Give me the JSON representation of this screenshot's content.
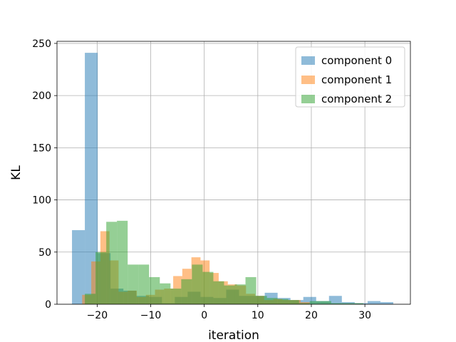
{
  "chart_data": {
    "type": "bar",
    "subtype": "overlapping-histogram",
    "title": "",
    "xlabel": "iteration",
    "ylabel": "KL",
    "xlim": [
      -27.5,
      38.5
    ],
    "ylim": [
      0,
      252
    ],
    "xticks": [
      -20,
      -10,
      0,
      10,
      20,
      30
    ],
    "xtick_labels": [
      "−20",
      "−10",
      "0",
      "10",
      "20",
      "30"
    ],
    "yticks": [
      0,
      50,
      100,
      150,
      200,
      250
    ],
    "ytick_labels": [
      "0",
      "50",
      "100",
      "150",
      "200",
      "250"
    ],
    "grid": true,
    "legend_position": "top-right",
    "series": [
      {
        "name": "component 0",
        "color": "#1f77b4",
        "alpha": 0.5,
        "bins": [
          {
            "x0": -24.7,
            "x1": -22.3,
            "value": 71
          },
          {
            "x0": -22.3,
            "x1": -19.9,
            "value": 241
          },
          {
            "x0": -19.9,
            "x1": -17.5,
            "value": 49
          },
          {
            "x0": -17.5,
            "x1": -15.1,
            "value": 15
          },
          {
            "x0": -15.1,
            "x1": -12.7,
            "value": 13
          },
          {
            "x0": -12.7,
            "x1": -10.3,
            "value": 8
          },
          {
            "x0": -10.3,
            "x1": -7.9,
            "value": 7
          },
          {
            "x0": -7.9,
            "x1": -5.5,
            "value": 1
          },
          {
            "x0": -5.5,
            "x1": -3.1,
            "value": 7
          },
          {
            "x0": -3.1,
            "x1": -0.7,
            "value": 12
          },
          {
            "x0": -0.7,
            "x1": 1.7,
            "value": 7
          },
          {
            "x0": 1.7,
            "x1": 4.1,
            "value": 6
          },
          {
            "x0": 4.1,
            "x1": 6.5,
            "value": 14
          },
          {
            "x0": 6.5,
            "x1": 8.9,
            "value": 8
          },
          {
            "x0": 8.9,
            "x1": 11.3,
            "value": 8
          },
          {
            "x0": 11.3,
            "x1": 13.7,
            "value": 11
          },
          {
            "x0": 13.7,
            "x1": 16.1,
            "value": 6
          },
          {
            "x0": 16.1,
            "x1": 18.5,
            "value": 4
          },
          {
            "x0": 18.5,
            "x1": 20.9,
            "value": 7
          },
          {
            "x0": 20.9,
            "x1": 23.3,
            "value": 3
          },
          {
            "x0": 23.3,
            "x1": 25.7,
            "value": 8
          },
          {
            "x0": 25.7,
            "x1": 28.1,
            "value": 2
          },
          {
            "x0": 28.1,
            "x1": 30.5,
            "value": 1
          },
          {
            "x0": 30.5,
            "x1": 32.9,
            "value": 3
          },
          {
            "x0": 32.9,
            "x1": 35.3,
            "value": 2
          }
        ]
      },
      {
        "name": "component 1",
        "color": "#ff7f0e",
        "alpha": 0.5,
        "bins": [
          {
            "x0": -22.8,
            "x1": -21.1,
            "value": 9
          },
          {
            "x0": -21.1,
            "x1": -19.4,
            "value": 41
          },
          {
            "x0": -19.4,
            "x1": -17.7,
            "value": 70
          },
          {
            "x0": -17.7,
            "x1": -16.0,
            "value": 42
          },
          {
            "x0": -16.0,
            "x1": -14.3,
            "value": 12
          },
          {
            "x0": -14.3,
            "x1": -12.6,
            "value": 13
          },
          {
            "x0": -12.6,
            "x1": -10.9,
            "value": 7
          },
          {
            "x0": -10.9,
            "x1": -9.2,
            "value": 9
          },
          {
            "x0": -9.2,
            "x1": -7.5,
            "value": 14
          },
          {
            "x0": -7.5,
            "x1": -5.8,
            "value": 15
          },
          {
            "x0": -5.8,
            "x1": -4.1,
            "value": 27
          },
          {
            "x0": -4.1,
            "x1": -2.4,
            "value": 34
          },
          {
            "x0": -2.4,
            "x1": -0.7,
            "value": 45
          },
          {
            "x0": -0.7,
            "x1": 1.0,
            "value": 42
          },
          {
            "x0": 1.0,
            "x1": 2.7,
            "value": 30
          },
          {
            "x0": 2.7,
            "x1": 4.4,
            "value": 22
          },
          {
            "x0": 4.4,
            "x1": 6.1,
            "value": 19
          },
          {
            "x0": 6.1,
            "x1": 7.8,
            "value": 18
          },
          {
            "x0": 7.8,
            "x1": 9.5,
            "value": 10
          },
          {
            "x0": 9.5,
            "x1": 11.2,
            "value": 8
          },
          {
            "x0": 11.2,
            "x1": 12.9,
            "value": 4
          },
          {
            "x0": 12.9,
            "x1": 14.6,
            "value": 5
          },
          {
            "x0": 14.6,
            "x1": 16.3,
            "value": 4
          },
          {
            "x0": 16.3,
            "x1": 18.0,
            "value": 4
          },
          {
            "x0": 18.0,
            "x1": 19.7,
            "value": 2
          }
        ]
      },
      {
        "name": "component 2",
        "color": "#2ca02c",
        "alpha": 0.5,
        "bins": [
          {
            "x0": -22.3,
            "x1": -20.3,
            "value": 10
          },
          {
            "x0": -20.3,
            "x1": -18.3,
            "value": 50
          },
          {
            "x0": -18.3,
            "x1": -16.3,
            "value": 79
          },
          {
            "x0": -16.3,
            "x1": -14.3,
            "value": 80
          },
          {
            "x0": -14.3,
            "x1": -12.3,
            "value": 38
          },
          {
            "x0": -12.3,
            "x1": -10.3,
            "value": 38
          },
          {
            "x0": -10.3,
            "x1": -8.3,
            "value": 26
          },
          {
            "x0": -8.3,
            "x1": -6.3,
            "value": 20
          },
          {
            "x0": -6.3,
            "x1": -4.3,
            "value": 15
          },
          {
            "x0": -4.3,
            "x1": -2.3,
            "value": 24
          },
          {
            "x0": -2.3,
            "x1": -0.3,
            "value": 38
          },
          {
            "x0": -0.3,
            "x1": 1.7,
            "value": 31
          },
          {
            "x0": 1.7,
            "x1": 3.7,
            "value": 22
          },
          {
            "x0": 3.7,
            "x1": 5.7,
            "value": 18
          },
          {
            "x0": 5.7,
            "x1": 7.7,
            "value": 19
          },
          {
            "x0": 7.7,
            "x1": 9.7,
            "value": 26
          },
          {
            "x0": 9.7,
            "x1": 11.7,
            "value": 8
          },
          {
            "x0": 11.7,
            "x1": 13.7,
            "value": 6
          },
          {
            "x0": 13.7,
            "x1": 15.7,
            "value": 5
          },
          {
            "x0": 15.7,
            "x1": 17.7,
            "value": 4
          },
          {
            "x0": 17.7,
            "x1": 19.7,
            "value": 1
          },
          {
            "x0": 19.7,
            "x1": 21.7,
            "value": 3
          },
          {
            "x0": 21.7,
            "x1": 23.7,
            "value": 3
          },
          {
            "x0": 23.7,
            "x1": 25.7,
            "value": 1
          },
          {
            "x0": 25.7,
            "x1": 27.7,
            "value": 1
          },
          {
            "x0": 27.7,
            "x1": 29.7,
            "value": 1
          }
        ]
      }
    ]
  }
}
